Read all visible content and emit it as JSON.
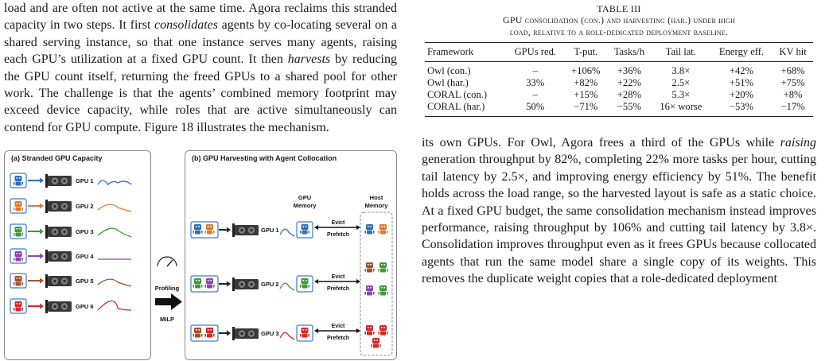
{
  "left_paragraph": {
    "p1": "load and are often not active at the same time. Agora reclaims this stranded capacity in two steps. It first ",
    "em1": "consolidates",
    "p2": " agents by co-locating several on a shared serving instance, so that one instance serves many agents, raising each GPU’s utilization at a fixed GPU count. It then ",
    "em2": "harvests",
    "p3": " by reducing the GPU count itself, returning the freed GPUs to a shared pool for other work. The challenge is that the agents’ combined memory footprint may exceed device capacity, while roles that are active simultaneously can contend for GPU compute. Figure 18 illustrates the mechanism."
  },
  "figure": {
    "panel_a_title": "(a) Stranded GPU Capacity",
    "panel_b_title": "(b) GPU Harvesting with Agent Collocation",
    "gpu_labels_a": [
      "GPU 1",
      "GPU 2",
      "GPU 3",
      "GPU 4",
      "GPU 5",
      "GPU 6"
    ],
    "gpu_labels_b": [
      "GPU 1",
      "GPU 2",
      "GPU 3"
    ],
    "profiling_label": "Profiling",
    "milp_label": "MILP",
    "gpu_memory_label": "GPU\nMemory",
    "host_memory_label": "Host\nMemory",
    "evict_label": "Evict",
    "prefetch_label": "Prefetch",
    "colors": {
      "blue": "#2f6fb6",
      "orange": "#e07a2e",
      "green": "#3f9a3a",
      "purple": "#8e44ad",
      "brown": "#a0522d",
      "red": "#d62828"
    }
  },
  "table": {
    "label": "TABLE III",
    "caption_line1": "GPU consolidation (con.) and harvesting (har.) under high",
    "caption_line2": "load, relative to a role-dedicated deployment baseline.",
    "headers": [
      "Framework",
      "GPUs red.",
      "T-put.",
      "Tasks/h",
      "Tail lat.",
      "Energy eff.",
      "KV hit"
    ],
    "rows": [
      [
        "Owl (con.)",
        "–",
        "+106%",
        "+36%",
        "3.8×",
        "+42%",
        "+68%"
      ],
      [
        "Owl (har.)",
        "33%",
        "+82%",
        "+22%",
        "2.5×",
        "+51%",
        "+75%"
      ],
      [
        "CORAL (con.)",
        "–",
        "+15%",
        "+28%",
        "5.3×",
        "+20%",
        "+8%"
      ],
      [
        "CORAL (har.)",
        "50%",
        "−71%",
        "−55%",
        "16× worse",
        "−53%",
        "−17%"
      ]
    ]
  },
  "right_paragraph": {
    "p1": "its own GPUs. For Owl, Agora frees a third of the GPUs while ",
    "em1": "raising",
    "p2": " generation throughput by 82%, completing 22% more tasks per hour, cutting tail latency by 2.5×, and improving energy efficiency by 51%. The benefit holds across the load range, so the harvested layout is safe as a static choice. At a fixed GPU budget, the same consolidation mechanism instead improves performance, raising throughput by 106% and cutting tail latency by 3.8×. Consolidation improves throughput even as it frees GPUs because collocated agents that run the same model share a single copy of its weights. This removes the duplicate weight copies that a role-dedicated deployment"
  }
}
